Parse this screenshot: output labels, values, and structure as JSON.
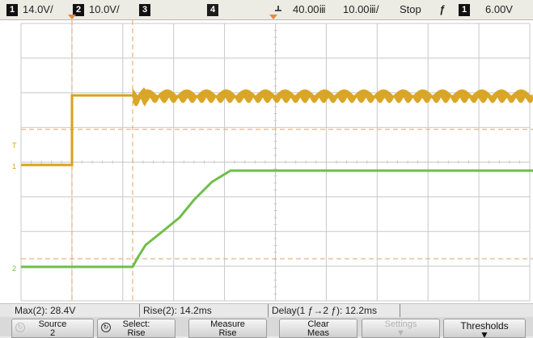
{
  "topbar": {
    "ch1_num": "1",
    "ch1_scale": "14.0V/",
    "ch2_num": "2",
    "ch2_scale": "10.0V/",
    "ch3_num": "3",
    "ch4_num": "4",
    "time_delay": "40.00ⅲ",
    "time_scale": "10.00ⅲ/",
    "run_state": "Stop",
    "trig_slope_symbol": "ƒ",
    "trig_source_num": "1",
    "trig_level": "6.00V"
  },
  "markers": {
    "ch1_ground": "1",
    "ch2_ground": "2",
    "trigger_level": "T"
  },
  "colors": {
    "ch1": "#d8a21c",
    "ch2": "#6fbe4a",
    "cursor": "#e8a060",
    "grid": "#c8c8c8"
  },
  "measurements": {
    "max": "Max(2): 28.4V",
    "rise": "Rise(2): 14.2ms",
    "delay": "Delay(1 ƒ→2 ƒ): 12.2ms"
  },
  "softkeys": {
    "source_label": "Source",
    "source_value": "2",
    "select_label": "Select:",
    "select_value": "Rise",
    "measure_label": "Measure",
    "measure_value": "Rise",
    "clear_label": "Clear",
    "clear_value": "Meas",
    "settings_label": "Settings",
    "thresholds_label": "Thresholds"
  },
  "icons": [
    "ground-arrow-icon",
    "trigger-arrow-icon",
    "rotate-knob-icon",
    "down-arrow-icon"
  ]
}
